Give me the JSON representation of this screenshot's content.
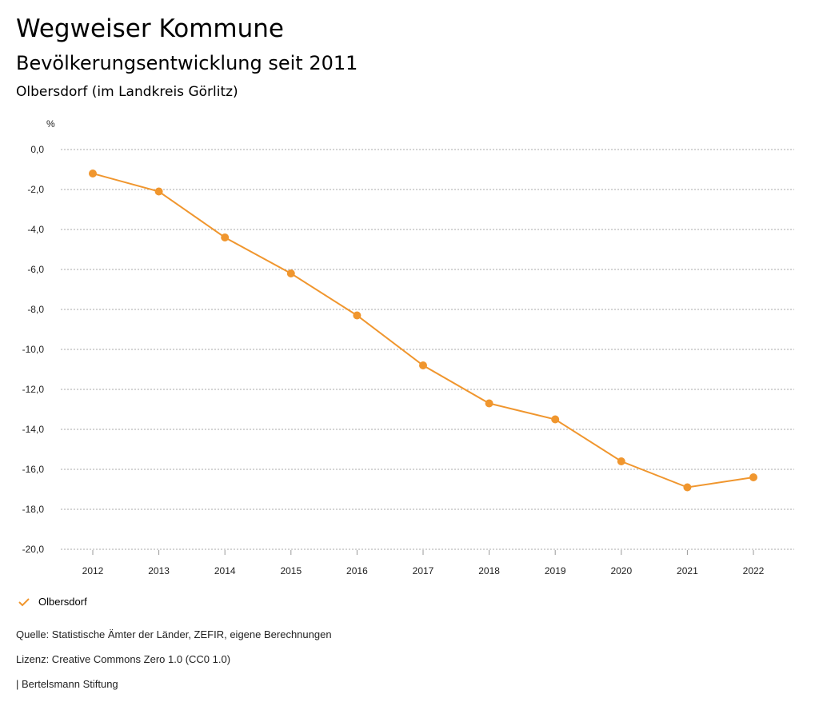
{
  "header": {
    "title": "Wegweiser Kommune",
    "subtitle": "Bevölkerungsentwicklung seit 2011",
    "region": "Olbersdorf (im Landkreis Görlitz)"
  },
  "chart_data": {
    "type": "line",
    "ylabel": "%",
    "ylim": [
      -20,
      0
    ],
    "yticks": [
      "0,0",
      "-2,0",
      "-4,0",
      "-6,0",
      "-8,0",
      "-10,0",
      "-12,0",
      "-14,0",
      "-16,0",
      "-18,0",
      "-20,0"
    ],
    "x": [
      "2012",
      "2013",
      "2014",
      "2015",
      "2016",
      "2017",
      "2018",
      "2019",
      "2020",
      "2021",
      "2022"
    ],
    "series": [
      {
        "name": "Olbersdorf",
        "color": "#f0962e",
        "values": [
          -1.2,
          -2.1,
          -4.4,
          -6.2,
          -8.3,
          -10.8,
          -12.7,
          -13.5,
          -15.6,
          -16.9,
          -16.4
        ]
      }
    ],
    "grid": true,
    "legend": "bottom-left"
  },
  "footer": {
    "source": "Quelle: Statistische Ämter der Länder, ZEFIR, eigene Berechnungen",
    "license": "Lizenz: Creative Commons Zero 1.0 (CC0 1.0)",
    "brand": "| Bertelsmann Stiftung"
  }
}
